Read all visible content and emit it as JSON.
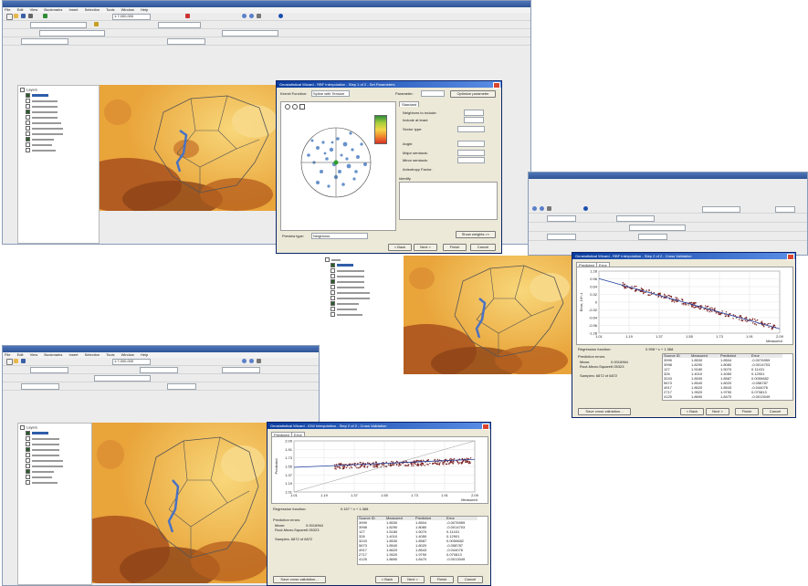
{
  "colors": {
    "map_light": "#f4c658",
    "map_mid": "#df9128",
    "map_dark": "#8c4418",
    "title_blue": "#0a3c9e",
    "series_point": "#7a1f1f"
  },
  "icons": [
    "app-icon",
    "save-icon",
    "open-icon",
    "zoom-in-icon",
    "zoom-out-icon",
    "pan-icon",
    "identify-icon",
    "close-icon",
    "checkbox-icon"
  ],
  "window1": {
    "title": "",
    "menu": [
      "File",
      "Edit",
      "View",
      "Bookmarks",
      "Insert",
      "Selection",
      "Tools",
      "Window",
      "Help"
    ],
    "toc_title": "Layers",
    "scale": "1:7,000,000"
  },
  "window2": {
    "title": ""
  },
  "window3": {
    "title": "",
    "menu": [
      "File",
      "Edit",
      "View",
      "Bookmarks",
      "Insert",
      "Selection",
      "Tools",
      "Window",
      "Help"
    ],
    "toc_title": "Layers",
    "scale": "1:7,000,000"
  },
  "dialog1": {
    "title": "Geostatistical Wizard - RBF Interpolation - Step 1 of 2 - Set Parameters",
    "kernel_label": "Kernel Function:",
    "kernel_value": "Spline with Tension",
    "parameter_label": "Parameter:",
    "optimize_button": "Optimize parameter",
    "standard_tab": "Standard",
    "neighbors_include": "Neighbors to include:",
    "include_at_least": "Include at least:",
    "sector_type": "Sector type:",
    "angle": "Angle:",
    "major_semiaxis": "Major semiaxis:",
    "minor_semiaxis": "Minor semiaxis:",
    "anisotropy_factor": "Anisotropy Factor:",
    "identify_label": "Identify",
    "preview_type_label": "Preview type:",
    "preview_type_value": "Neighbors",
    "show_weights_button": "Show weights >>",
    "back_button": "< Back",
    "next_button": "Next >",
    "finish_button": "Finish",
    "cancel_button": "Cancel"
  },
  "dialog2": {
    "title": "Geostatistical Wizard - RBF Interpolation - Step 2 of 2 - Cross Validation",
    "tab_predicted": "Predicted",
    "tab_error": "Error",
    "regression_label": "Regression function:",
    "regression_value": "0.998 * x + 1.368",
    "prediction_errors": "Prediction errors",
    "mean_label": "Mean:",
    "mean_value": "0.0016964",
    "rms_label": "Root-Mean-Square:",
    "rms_value": "0.05323",
    "samples_label": "Samples: 6872 of 6872",
    "table_headers": [
      "Source ID",
      "Measured",
      "Predicted",
      "Error"
    ],
    "table_rows": [
      [
        "3999",
        "1.8530",
        "1.8504",
        "-0.0076959"
      ],
      [
        "3998",
        "1.8290",
        "1.8080",
        "-0.0014703"
      ],
      [
        "127",
        "1.5180",
        "1.5070",
        "0.11431"
      ],
      [
        "326",
        "1.4010",
        "1.4050",
        "0.12901"
      ],
      [
        "3243",
        "1.8530",
        "1.8587",
        "0.0050682"
      ],
      [
        "5673",
        "1.8540",
        "1.8020",
        "-0.058787"
      ],
      [
        "4917",
        "1.8620",
        "1.8543",
        "-0.044076"
      ],
      [
        "2717",
        "1.9520",
        "1.9790",
        "0.070813"
      ],
      [
        "4125",
        "1.8690",
        "1.8470",
        "-0.0013049"
      ]
    ],
    "save_button": "Save cross validation...",
    "back_button": "< Back",
    "next_button": "Next >",
    "finish_button": "Finish",
    "cancel_button": "Cancel"
  },
  "dialog3": {
    "title": "Geostatistical Wizard - IDW Interpolation - Step 2 of 2 - Cross Validation",
    "tab_predicted": "Predicted",
    "tab_error": "Error",
    "regression_label": "Regression function:",
    "regression_value": "0.157 * x + 1.368",
    "prediction_errors": "Prediction errors",
    "mean_label": "Mean:",
    "mean_value": "0.0016964",
    "rms_label": "Root-Mean-Square:",
    "rms_value": "0.05323",
    "samples_label": "Samples: 6872 of 6872",
    "table_headers": [
      "Source ID",
      "Measured",
      "Predicted",
      "Error"
    ],
    "table_rows": [
      [
        "3999",
        "1.8530",
        "1.8504",
        "-0.0076959"
      ],
      [
        "3998",
        "1.8290",
        "1.8080",
        "-0.0014703"
      ],
      [
        "127",
        "1.5180",
        "1.5070",
        "0.11431"
      ],
      [
        "326",
        "1.4010",
        "1.4050",
        "0.12901"
      ],
      [
        "3243",
        "1.8530",
        "1.8587",
        "0.0050682"
      ],
      [
        "5673",
        "1.8540",
        "1.8020",
        "-0.058787"
      ],
      [
        "4917",
        "1.8620",
        "1.8543",
        "-0.044076"
      ],
      [
        "2717",
        "1.9520",
        "1.9790",
        "0.070813"
      ],
      [
        "4125",
        "1.8690",
        "1.8470",
        "-0.0013049"
      ]
    ],
    "save_button": "Save cross validation...",
    "back_button": "< Back",
    "next_button": "Next >",
    "finish_button": "Finish",
    "cancel_button": "Cancel"
  },
  "chart_data": [
    {
      "type": "scatter",
      "title": "",
      "xlabel": "Measured",
      "ylabel": "Error, 10^-1",
      "x_ticks": [
        "1.01",
        "1.19",
        "1.37",
        "1.55",
        "1.73",
        "1.91",
        "2.09"
      ],
      "y_ticks": [
        "1.28",
        "0.96",
        "0.64",
        "0.32",
        "0",
        "-0.32",
        "-0.64",
        "-0.96",
        "-1.28"
      ],
      "xlim": [
        1.01,
        2.09
      ],
      "ylim": [
        -1.28,
        1.28
      ],
      "trend": {
        "from": [
          1.01,
          0.97
        ],
        "to": [
          2.09,
          -1.1
        ]
      }
    },
    {
      "type": "scatter",
      "title": "",
      "xlabel": "Measured",
      "ylabel": "Predicted",
      "x_ticks": [
        "1.01",
        "1.19",
        "1.37",
        "1.55",
        "1.73",
        "1.91",
        "2.09"
      ],
      "y_ticks": [
        "2.09",
        "1.91",
        "1.73",
        "1.55",
        "1.37",
        "1.19",
        "1.01"
      ],
      "xlim": [
        1.01,
        2.09
      ],
      "ylim": [
        1.01,
        2.09
      ],
      "trend": {
        "from": [
          1.01,
          1.53
        ],
        "to": [
          2.09,
          1.7
        ]
      }
    }
  ]
}
